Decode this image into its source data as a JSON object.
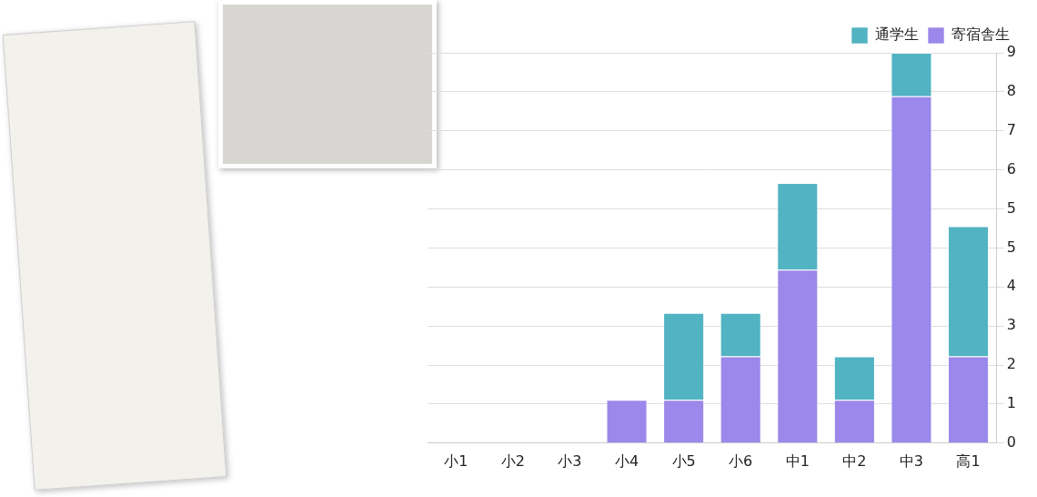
{
  "chart_data": {
    "type": "bar",
    "stacked": true,
    "categories": [
      "小1",
      "小2",
      "小3",
      "小4",
      "小5",
      "小6",
      "中1",
      "中2",
      "中3",
      "高1"
    ],
    "series": [
      {
        "name": "通学生",
        "color": "#52b3c2",
        "values": [
          0,
          0,
          0,
          0,
          2,
          1,
          2,
          1,
          1,
          3
        ]
      },
      {
        "name": "寄宿舎生",
        "color": "#9b88ea",
        "values": [
          0,
          0,
          0,
          1,
          1,
          2,
          4,
          1,
          8,
          2
        ]
      }
    ],
    "ylim": [
      0,
      9
    ],
    "yticks": [
      0,
      {
        "value": 0.9,
        "label": "1"
      },
      {
        "value": 1.8,
        "label": "2"
      },
      {
        "value": 2.7,
        "label": "3"
      },
      {
        "value": 3.6,
        "label": "4"
      },
      {
        "value": 4.5,
        "label": "5"
      },
      {
        "value": 5.4,
        "label": "5"
      },
      {
        "value": 6.3,
        "label": "6"
      },
      {
        "value": 7.2,
        "label": "7"
      },
      {
        "value": 8.1,
        "label": "8"
      },
      9
    ],
    "grid": true,
    "legend": "top-right"
  }
}
